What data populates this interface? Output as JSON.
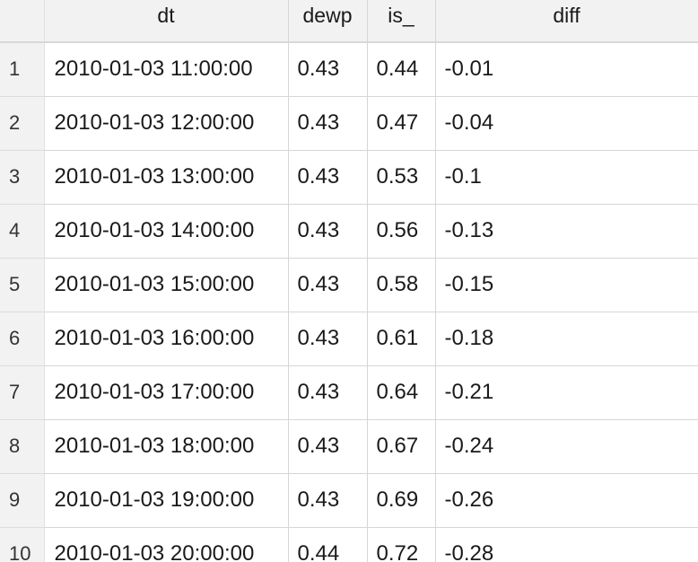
{
  "table": {
    "columns": [
      "",
      "dt",
      "dewp",
      "is_",
      "diff"
    ],
    "rows": [
      {
        "idx": "1",
        "dt": "2010-01-03 11:00:00",
        "dewp": "0.43",
        "is_": "0.44",
        "diff": "-0.01"
      },
      {
        "idx": "2",
        "dt": "2010-01-03 12:00:00",
        "dewp": "0.43",
        "is_": "0.47",
        "diff": "-0.04"
      },
      {
        "idx": "3",
        "dt": "2010-01-03 13:00:00",
        "dewp": "0.43",
        "is_": "0.53",
        "diff": "-0.1"
      },
      {
        "idx": "4",
        "dt": "2010-01-03 14:00:00",
        "dewp": "0.43",
        "is_": "0.56",
        "diff": "-0.13"
      },
      {
        "idx": "5",
        "dt": "2010-01-03 15:00:00",
        "dewp": "0.43",
        "is_": "0.58",
        "diff": "-0.15"
      },
      {
        "idx": "6",
        "dt": "2010-01-03 16:00:00",
        "dewp": "0.43",
        "is_": "0.61",
        "diff": "-0.18"
      },
      {
        "idx": "7",
        "dt": "2010-01-03 17:00:00",
        "dewp": "0.43",
        "is_": "0.64",
        "diff": "-0.21"
      },
      {
        "idx": "8",
        "dt": "2010-01-03 18:00:00",
        "dewp": "0.43",
        "is_": "0.67",
        "diff": "-0.24"
      },
      {
        "idx": "9",
        "dt": "2010-01-03 19:00:00",
        "dewp": "0.43",
        "is_": "0.69",
        "diff": "-0.26"
      },
      {
        "idx": "10",
        "dt": "2010-01-03 20:00:00",
        "dewp": "0.44",
        "is_": "0.72",
        "diff": "-0.28"
      }
    ]
  }
}
